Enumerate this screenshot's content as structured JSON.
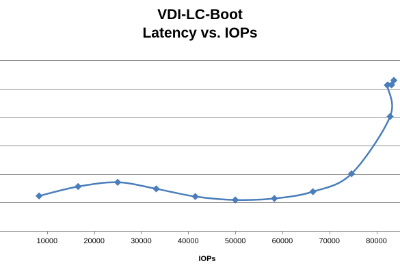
{
  "chart_data": {
    "type": "line",
    "title_line1": "VDI-LC-Boot",
    "title_line2": "Latency vs. IOPs",
    "xlabel": "IOPs",
    "ylabel": "",
    "xlim": [
      0,
      85000
    ],
    "x_ticks": [
      10000,
      20000,
      30000,
      40000,
      50000,
      60000,
      70000,
      80000
    ],
    "x_tick_labels": [
      "10000",
      "20000",
      "30000",
      "40000",
      "50000",
      "60000",
      "70000",
      "80000"
    ],
    "ylim": [
      0,
      6
    ],
    "y_gridlines": [
      1,
      2,
      3,
      4,
      5,
      6
    ],
    "y_tick_labels_visible": false,
    "grid": true,
    "legend": "none",
    "series": [
      {
        "color": "#4a7ebb",
        "marker": "diamond",
        "smooth": true,
        "x": [
          8300,
          16600,
          25000,
          33200,
          41500,
          50000,
          58300,
          66500,
          74700,
          82900,
          82300,
          83200,
          83700
        ],
        "y": [
          1.23,
          1.56,
          1.71,
          1.48,
          1.21,
          1.09,
          1.14,
          1.38,
          2.01,
          4.02,
          5.12,
          5.13,
          5.29
        ]
      }
    ]
  }
}
